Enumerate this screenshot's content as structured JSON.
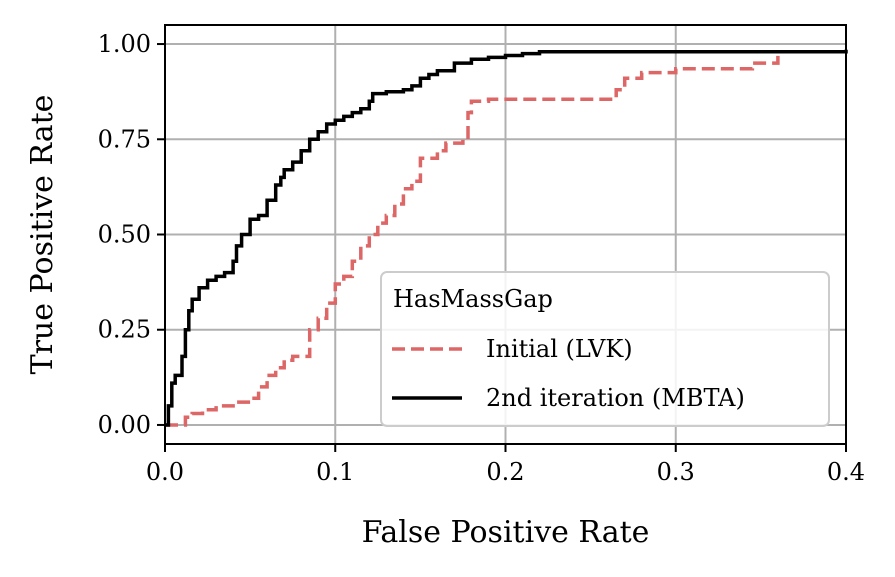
{
  "chart_data": {
    "type": "line",
    "xlabel": "False Positive Rate",
    "ylabel": "True Positive Rate",
    "xlim": [
      0.0,
      0.4
    ],
    "ylim": [
      -0.05,
      1.05
    ],
    "xticks": [
      "0.0",
      "0.1",
      "0.2",
      "0.3",
      "0.4"
    ],
    "yticks": [
      "0.00",
      "0.25",
      "0.50",
      "0.75",
      "1.00"
    ],
    "grid": true,
    "legend": {
      "title": "HasMassGap",
      "placement": "lower-right"
    },
    "series": [
      {
        "name": "Initial (LVK)",
        "color": "#dd6666",
        "style": "dashed",
        "x": [
          0.0,
          0.008,
          0.012,
          0.016,
          0.022,
          0.03,
          0.04,
          0.05,
          0.055,
          0.06,
          0.065,
          0.07,
          0.075,
          0.085,
          0.09,
          0.095,
          0.1,
          0.105,
          0.11,
          0.115,
          0.12,
          0.125,
          0.13,
          0.135,
          0.14,
          0.145,
          0.15,
          0.16,
          0.165,
          0.175,
          0.178,
          0.18,
          0.19,
          0.2,
          0.265,
          0.27,
          0.28,
          0.3,
          0.345,
          0.36
        ],
        "y": [
          0.0,
          0.0,
          0.02,
          0.03,
          0.04,
          0.05,
          0.06,
          0.07,
          0.1,
          0.13,
          0.15,
          0.17,
          0.18,
          0.25,
          0.28,
          0.32,
          0.37,
          0.39,
          0.43,
          0.47,
          0.5,
          0.53,
          0.55,
          0.58,
          0.62,
          0.64,
          0.7,
          0.72,
          0.74,
          0.75,
          0.82,
          0.85,
          0.855,
          0.855,
          0.88,
          0.91,
          0.925,
          0.935,
          0.95,
          0.98
        ]
      },
      {
        "name": "2nd iteration (MBTA)",
        "color": "#000000",
        "style": "solid",
        "x": [
          0.0,
          0.002,
          0.004,
          0.006,
          0.01,
          0.012,
          0.014,
          0.016,
          0.02,
          0.025,
          0.03,
          0.035,
          0.04,
          0.042,
          0.045,
          0.05,
          0.055,
          0.06,
          0.065,
          0.068,
          0.07,
          0.075,
          0.08,
          0.085,
          0.09,
          0.095,
          0.1,
          0.105,
          0.11,
          0.115,
          0.12,
          0.122,
          0.13,
          0.14,
          0.145,
          0.15,
          0.155,
          0.16,
          0.17,
          0.18,
          0.19,
          0.2,
          0.21,
          0.22,
          0.4
        ],
        "y": [
          0.0,
          0.05,
          0.11,
          0.13,
          0.18,
          0.25,
          0.3,
          0.33,
          0.36,
          0.38,
          0.39,
          0.4,
          0.43,
          0.47,
          0.5,
          0.54,
          0.55,
          0.59,
          0.63,
          0.65,
          0.67,
          0.69,
          0.72,
          0.75,
          0.77,
          0.79,
          0.8,
          0.81,
          0.82,
          0.83,
          0.85,
          0.87,
          0.875,
          0.88,
          0.89,
          0.91,
          0.92,
          0.93,
          0.95,
          0.96,
          0.965,
          0.97,
          0.975,
          0.98,
          0.985
        ]
      }
    ]
  }
}
